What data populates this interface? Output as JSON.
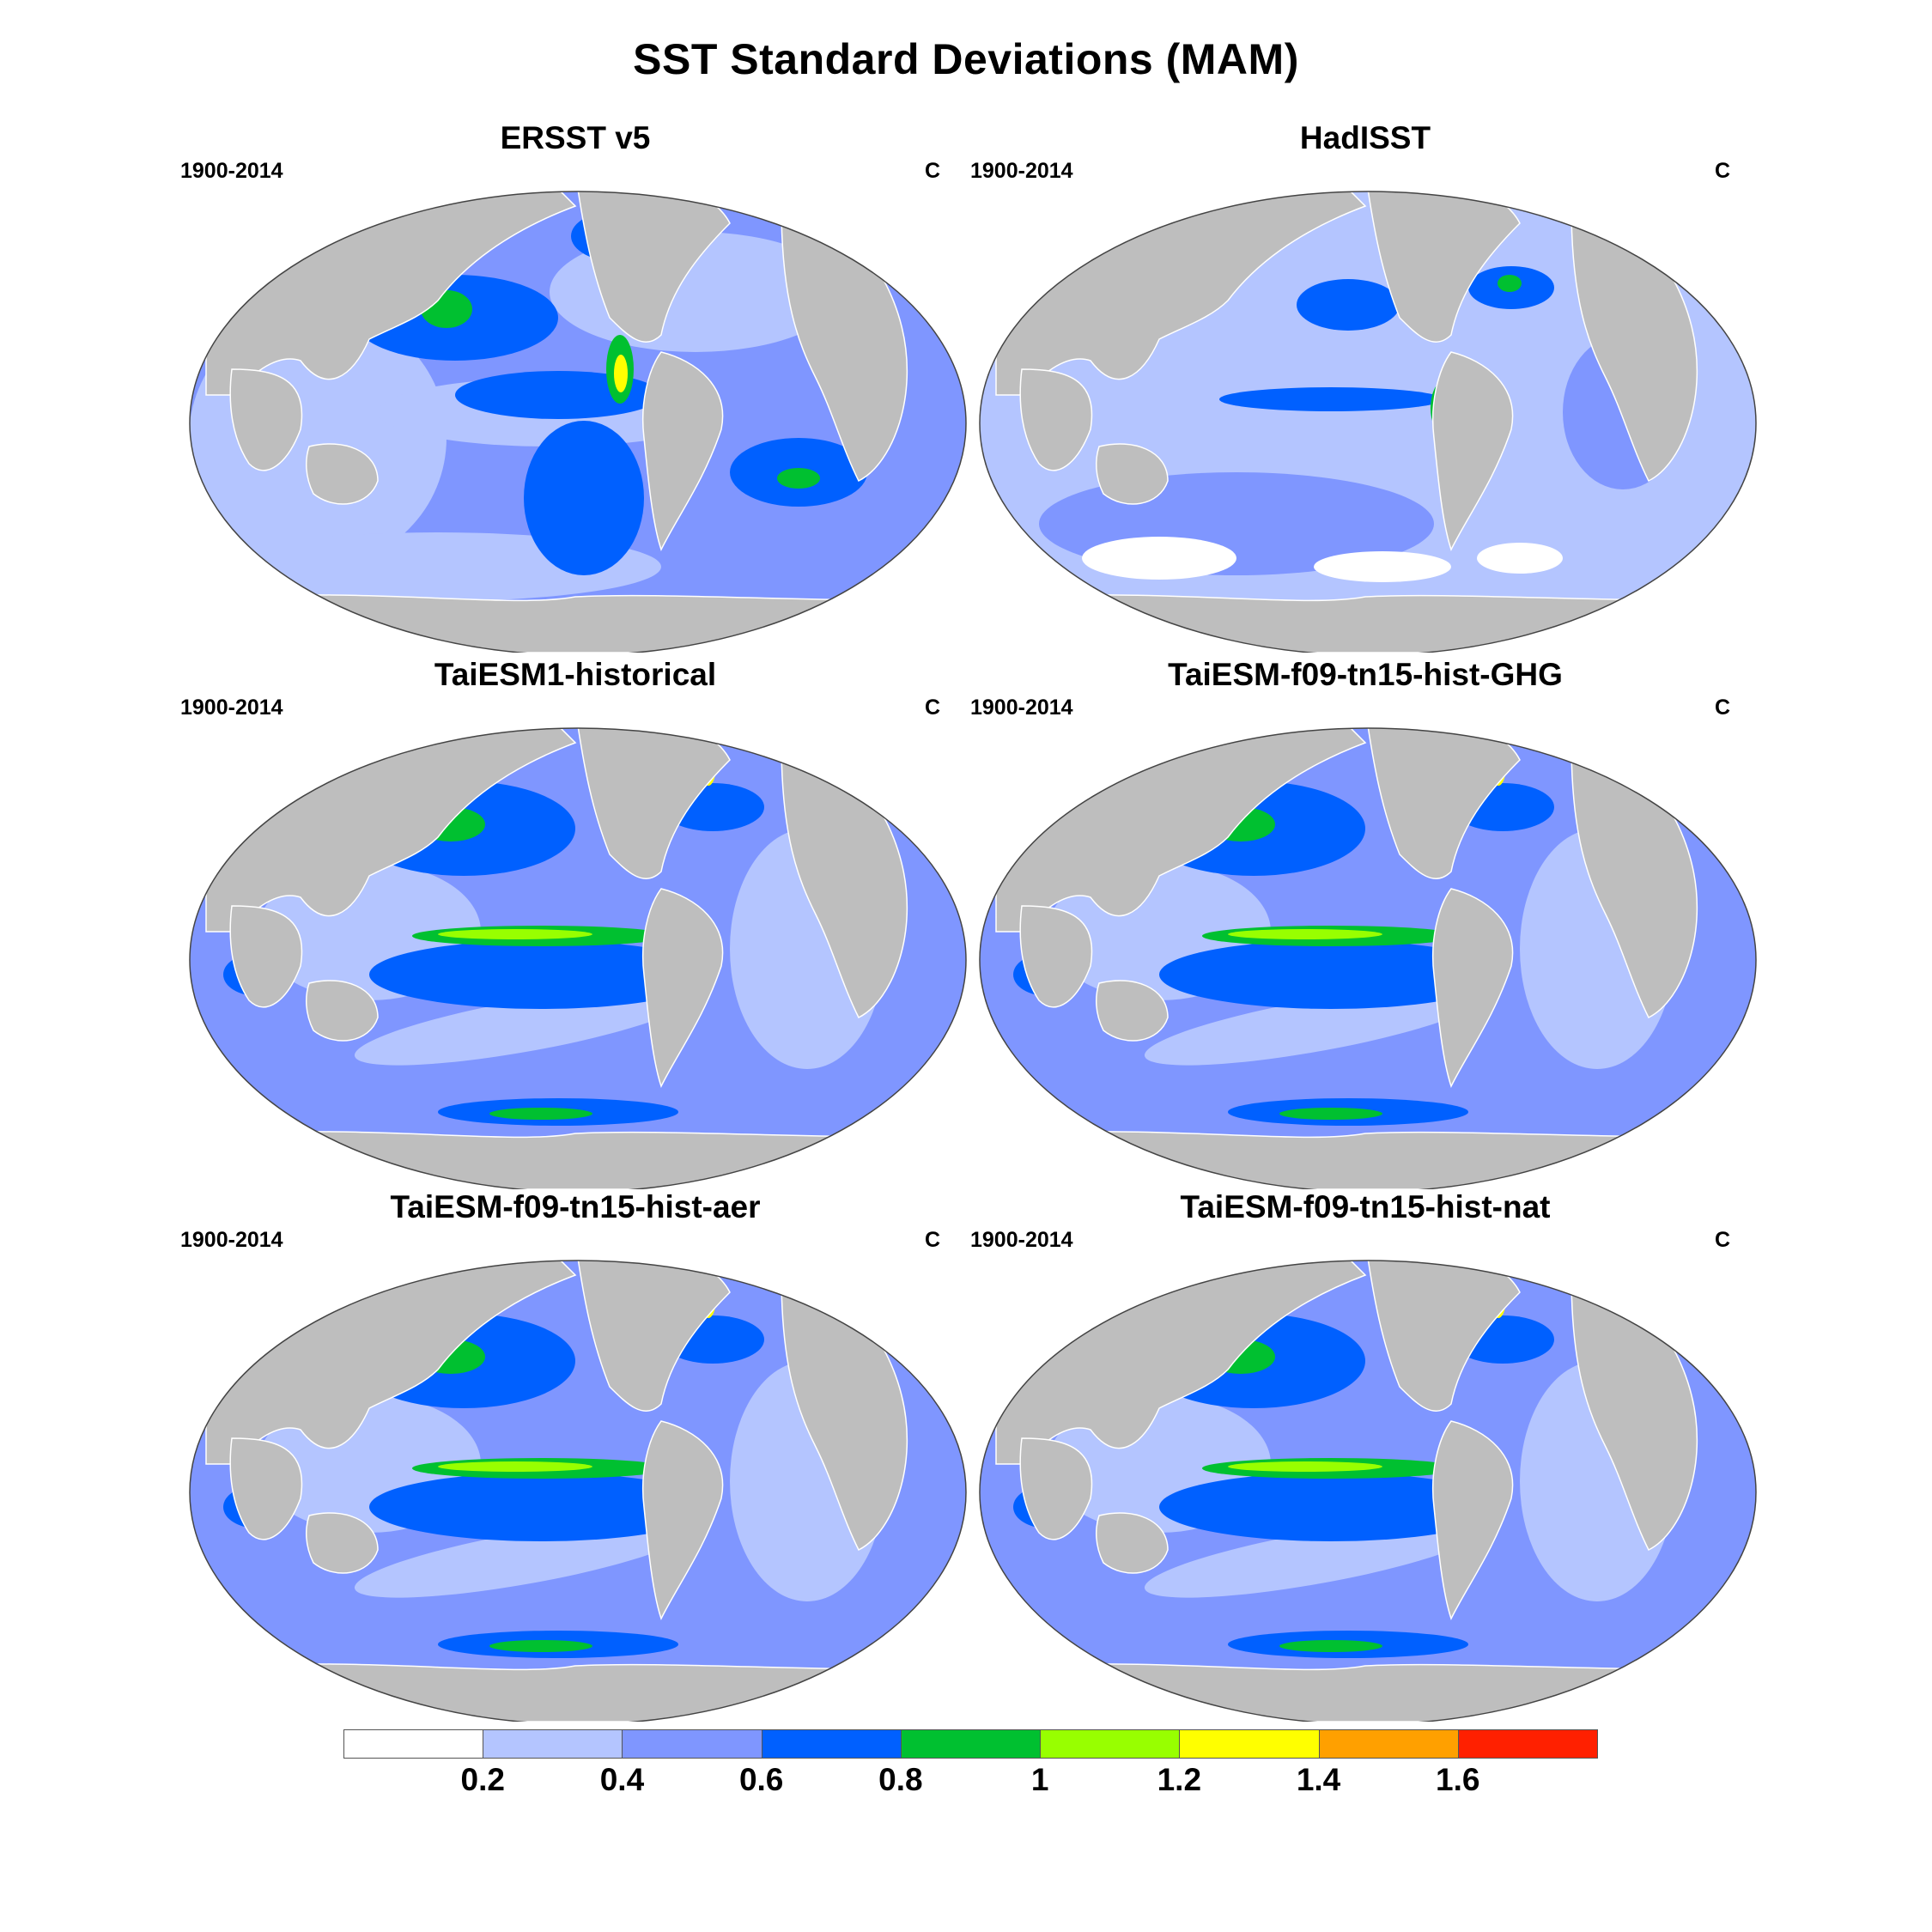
{
  "title": "SST Standard Deviations (MAM)",
  "panels": [
    {
      "title": "ERSST v5",
      "period": "1900-2014",
      "units": "C"
    },
    {
      "title": "HadISST",
      "period": "1900-2014",
      "units": "C"
    },
    {
      "title": "TaiESM1-historical",
      "period": "1900-2014",
      "units": "C"
    },
    {
      "title": "TaiESM-f09-tn15-hist-GHG",
      "period": "1900-2014",
      "units": "C"
    },
    {
      "title": "TaiESM-f09-tn15-hist-aer",
      "period": "1900-2014",
      "units": "C"
    },
    {
      "title": "TaiESM-f09-tn15-hist-nat",
      "period": "1900-2014",
      "units": "C"
    }
  ],
  "colorbar": {
    "labels": [
      "0.2",
      "0.4",
      "0.6",
      "0.8",
      "1",
      "1.2",
      "1.4",
      "1.6"
    ],
    "colors": [
      "#ffffff",
      "#b4c5ff",
      "#7f96ff",
      "#0060ff",
      "#00c030",
      "#98ff00",
      "#ffff00",
      "#ffa000",
      "#ff2000"
    ]
  },
  "colors": {
    "land": "#bebebe",
    "coast": "#ffffff",
    "outline": "#444444"
  }
}
